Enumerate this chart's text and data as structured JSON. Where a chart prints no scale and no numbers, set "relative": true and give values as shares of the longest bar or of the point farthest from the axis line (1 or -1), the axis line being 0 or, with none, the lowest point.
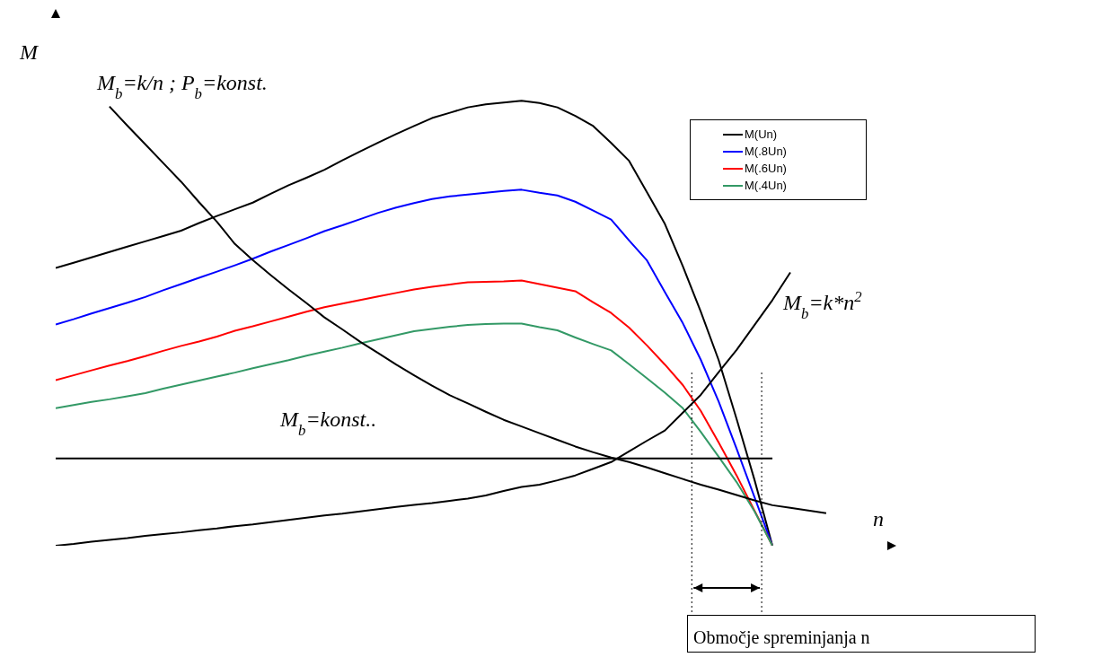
{
  "chart_data": {
    "type": "line",
    "relative": true,
    "xlabel": "n",
    "ylabel": "M",
    "marker": "none",
    "line_style": "solid",
    "legend": "top right",
    "grid": false,
    "categories": [
      null,
      null,
      null,
      null,
      null,
      null,
      null,
      null,
      null,
      null,
      null,
      null,
      null,
      null,
      null,
      null,
      null,
      null,
      null,
      null,
      null,
      null,
      null,
      null,
      null,
      null,
      null,
      null,
      null,
      null,
      null,
      null,
      null,
      null,
      null,
      null,
      null,
      null,
      null,
      null,
      null,
      null,
      null,
      null
    ],
    "series": [
      {
        "name": "M(Un)",
        "color": "#000000",
        "values": [
          0.624,
          0.636,
          0.648,
          0.66,
          0.672,
          0.684,
          0.696,
          0.708,
          0.725,
          0.741,
          0.756,
          0.771,
          0.791,
          0.81,
          0.827,
          0.845,
          0.866,
          0.886,
          0.906,
          0.925,
          0.943,
          0.961,
          0.973,
          0.985,
          0.992,
          0.996,
          1,
          0.995,
          0.985,
          0.966,
          0.943,
          0.905,
          0.865,
          0.794,
          0.723,
          0.628,
          0.526,
          0.417,
          0.285,
          0.148,
          0,
          null,
          null,
          null
        ]
      },
      {
        "name": "M(.8Un)",
        "color": "#0000ff",
        "values": [
          0.497,
          0.509,
          0.522,
          0.534,
          0.546,
          0.559,
          0.574,
          0.588,
          0.602,
          0.616,
          0.63,
          0.645,
          0.661,
          0.676,
          0.691,
          0.707,
          0.72,
          0.734,
          0.748,
          0.76,
          0.77,
          0.779,
          0.785,
          0.789,
          0.793,
          0.797,
          0.8,
          0.793,
          0.787,
          0.773,
          0.753,
          0.733,
          0.686,
          0.641,
          0.57,
          0.5,
          0.418,
          0.324,
          0.218,
          0.109,
          0,
          null,
          null,
          null
        ]
      },
      {
        "name": "M(.6Un)",
        "color": "#ff0000",
        "values": [
          0.372,
          0.383,
          0.394,
          0.405,
          0.415,
          0.426,
          0.438,
          0.449,
          0.459,
          0.47,
          0.483,
          0.493,
          0.504,
          0.515,
          0.526,
          0.536,
          0.544,
          0.552,
          0.56,
          0.568,
          0.576,
          0.582,
          0.587,
          0.592,
          0.593,
          0.594,
          0.596,
          0.588,
          0.58,
          0.572,
          0.547,
          0.523,
          0.49,
          0.45,
          0.407,
          0.361,
          0.303,
          0.232,
          0.158,
          0.079,
          0,
          null,
          null,
          null
        ]
      },
      {
        "name": "M(.4Un)",
        "color": "#339966",
        "values": [
          0.309,
          0.316,
          0.323,
          0.329,
          0.336,
          0.343,
          0.353,
          0.362,
          0.371,
          0.38,
          0.389,
          0.399,
          0.408,
          0.417,
          0.427,
          0.436,
          0.445,
          0.455,
          0.464,
          0.473,
          0.482,
          0.487,
          0.492,
          0.496,
          0.498,
          0.499,
          0.499,
          0.491,
          0.484,
          0.468,
          0.453,
          0.439,
          0.408,
          0.376,
          0.344,
          0.309,
          0.256,
          0.2,
          0.143,
          0.077,
          0,
          null,
          null,
          null
        ]
      },
      {
        "color": "#000000",
        "values": [
          null,
          null,
          null,
          0.987,
          0.944,
          0.902,
          0.86,
          0.818,
          0.772,
          0.728,
          0.678,
          0.642,
          0.608,
          0.576,
          0.545,
          0.513,
          0.486,
          0.458,
          0.433,
          0.407,
          0.383,
          0.36,
          0.338,
          0.32,
          0.301,
          0.283,
          0.268,
          0.253,
          0.238,
          0.223,
          0.21,
          0.198,
          0.188,
          0.176,
          0.163,
          0.15,
          0.137,
          0.126,
          0.114,
          0.102,
          0.091,
          0.085,
          0.079,
          0.073
        ]
      },
      {
        "color": "#000000",
        "values": [
          0,
          0.004,
          0.009,
          0.013,
          0.017,
          0.022,
          0.026,
          0.03,
          0.035,
          0.039,
          0.044,
          0.048,
          0.053,
          0.058,
          0.063,
          0.068,
          0.072,
          0.077,
          0.082,
          0.087,
          0.092,
          0.096,
          0.101,
          0.106,
          0.113,
          0.123,
          0.132,
          0.137,
          0.147,
          0.158,
          0.173,
          0.188,
          0.212,
          0.236,
          0.259,
          0.299,
          0.339,
          0.39,
          0.44,
          0.496,
          0.552,
          0.614,
          null,
          null
        ]
      },
      {
        "color": "#000000",
        "values": [
          0.196,
          0.196,
          0.196,
          0.196,
          0.196,
          0.196,
          0.196,
          0.196,
          0.196,
          0.196,
          0.196,
          0.196,
          0.196,
          0.196,
          0.196,
          0.196,
          0.196,
          0.196,
          0.196,
          0.196,
          0.196,
          0.196,
          0.196,
          0.196,
          0.196,
          0.196,
          0.196,
          0.196,
          0.196,
          0.196,
          0.196,
          0.196,
          0.196,
          0.196,
          0.196,
          0.196,
          0.196,
          0.196,
          0.196,
          0.196,
          0.196,
          null,
          null,
          null
        ]
      }
    ],
    "annotations": [
      "M$_{b}$=k/n ; P$_{b}$=konst.",
      "M$_{b}$=k*n$^{2}$",
      "M$_{b}$=konst..",
      "Območje spreminjanja n"
    ]
  }
}
